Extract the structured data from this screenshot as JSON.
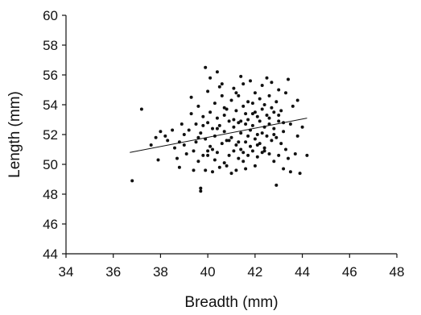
{
  "chart_data": {
    "type": "scatter",
    "title": "",
    "xlabel": "Breadth (mm)",
    "ylabel": "Length (mm)",
    "xlim": [
      34,
      48
    ],
    "ylim": [
      44,
      60
    ],
    "xticks": [
      "34",
      "36",
      "38",
      "40",
      "42",
      "44",
      "46",
      "48"
    ],
    "yticks": [
      "44",
      "46",
      "48",
      "50",
      "52",
      "54",
      "56",
      "58",
      "60"
    ],
    "grid": false,
    "legend": "none",
    "colors": {
      "points": "#111111",
      "trendline": "#111111",
      "axes": "#111111"
    },
    "trendline": {
      "x": [
        36.7,
        44.2
      ],
      "y": [
        50.8,
        53.1
      ]
    },
    "points": [
      [
        36.8,
        48.9
      ],
      [
        37.2,
        53.7
      ],
      [
        37.6,
        51.3
      ],
      [
        37.8,
        51.8
      ],
      [
        37.9,
        50.3
      ],
      [
        38.0,
        52.2
      ],
      [
        38.2,
        51.9
      ],
      [
        38.3,
        51.6
      ],
      [
        38.5,
        52.3
      ],
      [
        38.6,
        51.1
      ],
      [
        38.7,
        50.4
      ],
      [
        38.8,
        49.8
      ],
      [
        38.8,
        51.5
      ],
      [
        38.9,
        52.7
      ],
      [
        39.0,
        52.0
      ],
      [
        39.0,
        51.3
      ],
      [
        39.1,
        50.7
      ],
      [
        39.2,
        52.3
      ],
      [
        39.3,
        53.4
      ],
      [
        39.3,
        54.5
      ],
      [
        39.4,
        49.6
      ],
      [
        39.4,
        50.9
      ],
      [
        39.5,
        52.7
      ],
      [
        39.5,
        51.5
      ],
      [
        39.6,
        53.9
      ],
      [
        39.6,
        50.2
      ],
      [
        39.7,
        48.4
      ],
      [
        39.7,
        48.2
      ],
      [
        39.7,
        52.1
      ],
      [
        39.8,
        53.2
      ],
      [
        39.8,
        50.6
      ],
      [
        39.9,
        56.5
      ],
      [
        39.9,
        51.7
      ],
      [
        39.9,
        49.6
      ],
      [
        40.0,
        54.9
      ],
      [
        40.0,
        52.8
      ],
      [
        40.0,
        50.9
      ],
      [
        40.1,
        53.5
      ],
      [
        40.1,
        51.2
      ],
      [
        40.1,
        55.8
      ],
      [
        40.2,
        52.4
      ],
      [
        40.2,
        49.5
      ],
      [
        40.3,
        54.1
      ],
      [
        40.3,
        51.9
      ],
      [
        40.3,
        50.3
      ],
      [
        40.4,
        56.2
      ],
      [
        40.4,
        53.1
      ],
      [
        40.4,
        50.8
      ],
      [
        40.5,
        55.2
      ],
      [
        40.5,
        52.6
      ],
      [
        40.5,
        49.8
      ],
      [
        40.6,
        54.6
      ],
      [
        40.6,
        51.4
      ],
      [
        40.7,
        53.3
      ],
      [
        40.7,
        50.1
      ],
      [
        40.7,
        52.2
      ],
      [
        40.8,
        51.6
      ],
      [
        40.8,
        49.9
      ],
      [
        40.8,
        53.7
      ],
      [
        40.9,
        52.9
      ],
      [
        40.9,
        50.6
      ],
      [
        41.0,
        54.3
      ],
      [
        41.0,
        51.8
      ],
      [
        41.0,
        49.4
      ],
      [
        41.1,
        52.5
      ],
      [
        41.1,
        50.9
      ],
      [
        41.1,
        55.1
      ],
      [
        41.2,
        53.6
      ],
      [
        41.2,
        51.3
      ],
      [
        41.2,
        49.6
      ],
      [
        41.3,
        52.8
      ],
      [
        41.3,
        54.6
      ],
      [
        41.3,
        50.4
      ],
      [
        41.4,
        55.9
      ],
      [
        41.4,
        52.1
      ],
      [
        41.4,
        51.0
      ],
      [
        41.5,
        53.9
      ],
      [
        41.5,
        50.2
      ],
      [
        41.5,
        55.4
      ],
      [
        41.6,
        52.7
      ],
      [
        41.6,
        51.5
      ],
      [
        41.6,
        49.7
      ],
      [
        41.7,
        54.2
      ],
      [
        41.7,
        53.0
      ],
      [
        41.7,
        50.6
      ],
      [
        41.8,
        52.3
      ],
      [
        41.8,
        51.2
      ],
      [
        41.8,
        55.6
      ],
      [
        41.9,
        53.4
      ],
      [
        41.9,
        50.9
      ],
      [
        41.9,
        52.6
      ],
      [
        42.0,
        54.8
      ],
      [
        42.0,
        51.7
      ],
      [
        42.0,
        49.9
      ],
      [
        42.1,
        53.2
      ],
      [
        42.1,
        52.0
      ],
      [
        42.1,
        50.5
      ],
      [
        42.2,
        54.4
      ],
      [
        42.2,
        51.4
      ],
      [
        42.2,
        52.9
      ],
      [
        42.3,
        55.3
      ],
      [
        42.3,
        53.7
      ],
      [
        42.3,
        50.8
      ],
      [
        42.4,
        52.5
      ],
      [
        42.4,
        51.1
      ],
      [
        42.4,
        54.0
      ],
      [
        42.5,
        55.8
      ],
      [
        42.5,
        53.3
      ],
      [
        42.5,
        51.9
      ],
      [
        42.6,
        52.7
      ],
      [
        42.6,
        50.7
      ],
      [
        42.6,
        54.6
      ],
      [
        42.7,
        53.8
      ],
      [
        42.7,
        51.6
      ],
      [
        42.7,
        55.5
      ],
      [
        42.8,
        52.4
      ],
      [
        42.8,
        50.2
      ],
      [
        42.8,
        53.5
      ],
      [
        42.9,
        54.2
      ],
      [
        42.9,
        51.8
      ],
      [
        42.9,
        48.6
      ],
      [
        43.0,
        52.9
      ],
      [
        43.0,
        50.6
      ],
      [
        43.0,
        55.0
      ],
      [
        43.1,
        53.6
      ],
      [
        43.1,
        51.4
      ],
      [
        43.2,
        52.2
      ],
      [
        43.2,
        49.7
      ],
      [
        43.3,
        54.8
      ],
      [
        43.3,
        51.0
      ],
      [
        43.4,
        55.7
      ],
      [
        43.4,
        50.4
      ],
      [
        43.5,
        52.7
      ],
      [
        43.5,
        49.5
      ],
      [
        43.6,
        53.9
      ],
      [
        43.7,
        50.7
      ],
      [
        43.8,
        54.3
      ],
      [
        43.8,
        51.9
      ],
      [
        43.9,
        49.4
      ],
      [
        44.0,
        52.5
      ],
      [
        44.2,
        50.6
      ],
      [
        40.6,
        55.4
      ],
      [
        41.2,
        54.8
      ],
      [
        42.0,
        53.5
      ],
      [
        41.4,
        52.9
      ],
      [
        40.9,
        51.6
      ],
      [
        41.7,
        51.9
      ],
      [
        42.3,
        52.1
      ],
      [
        41.1,
        53.0
      ],
      [
        40.4,
        52.4
      ],
      [
        41.9,
        54.1
      ],
      [
        42.6,
        53.1
      ],
      [
        40.2,
        51.0
      ],
      [
        41.5,
        50.8
      ],
      [
        42.1,
        51.3
      ],
      [
        43.0,
        53.3
      ],
      [
        39.8,
        52.6
      ],
      [
        40.7,
        53.8
      ],
      [
        41.3,
        51.5
      ],
      [
        42.8,
        52.0
      ],
      [
        40.0,
        50.6
      ],
      [
        41.6,
        53.4
      ],
      [
        42.4,
        50.9
      ],
      [
        39.6,
        51.8
      ],
      [
        43.2,
        52.8
      ]
    ]
  }
}
